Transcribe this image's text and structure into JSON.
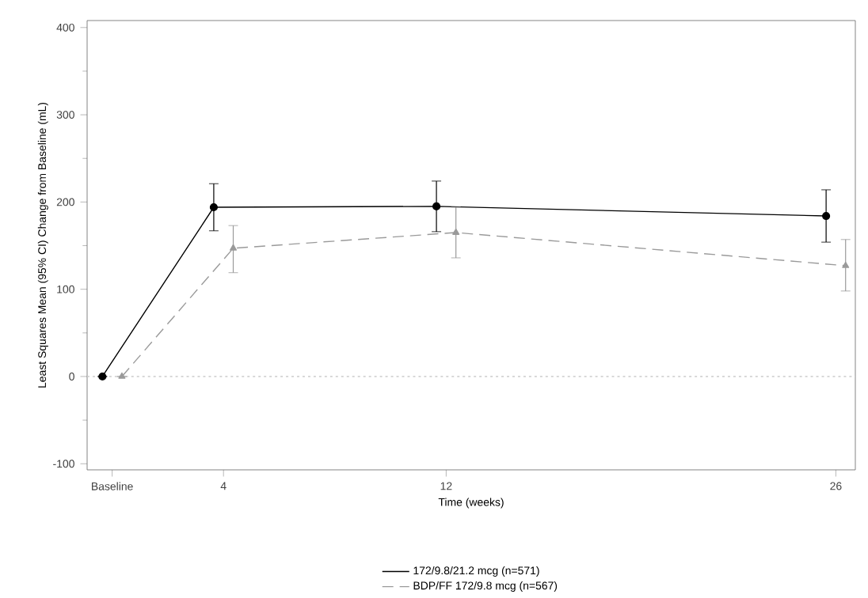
{
  "chart_data": {
    "type": "line",
    "xlabel": "Time (weeks)",
    "ylabel": "Least Squares Mean (95% CI) Change from Baseline (mL)",
    "xlim": [
      -0.9,
      26.7
    ],
    "ylim": [
      -107,
      408
    ],
    "xticks": [
      {
        "value": 0,
        "label": "Baseline"
      },
      4,
      12,
      26
    ],
    "yticks": [
      -100,
      0,
      100,
      200,
      300,
      400
    ],
    "series": [
      {
        "name": "172/9.8/21.2 mcg (n=571)",
        "color": "#000000",
        "marker": "circle",
        "line_style": "solid",
        "x": [
          -0.35,
          3.65,
          11.65,
          25.65
        ],
        "values": [
          0,
          194,
          195,
          184
        ],
        "errors": [
          null,
          [
            167,
            221
          ],
          [
            166,
            224
          ],
          [
            154,
            214
          ]
        ]
      },
      {
        "name": "BDP/FF 172/9.8 mcg (n=567)",
        "color": "#9a9a9a",
        "marker": "triangle",
        "line_style": "dashed",
        "x": [
          0.35,
          4.35,
          12.35,
          26.35
        ],
        "values": [
          0,
          147,
          165,
          127
        ],
        "errors": [
          null,
          [
            119,
            173
          ],
          [
            136,
            194
          ],
          [
            98,
            157
          ]
        ]
      }
    ],
    "ref_lines": [
      {
        "axis": "y",
        "value": 0,
        "color": "#cccccc",
        "line_style": "dotted"
      }
    ],
    "legend": "bottom",
    "grid": false
  }
}
